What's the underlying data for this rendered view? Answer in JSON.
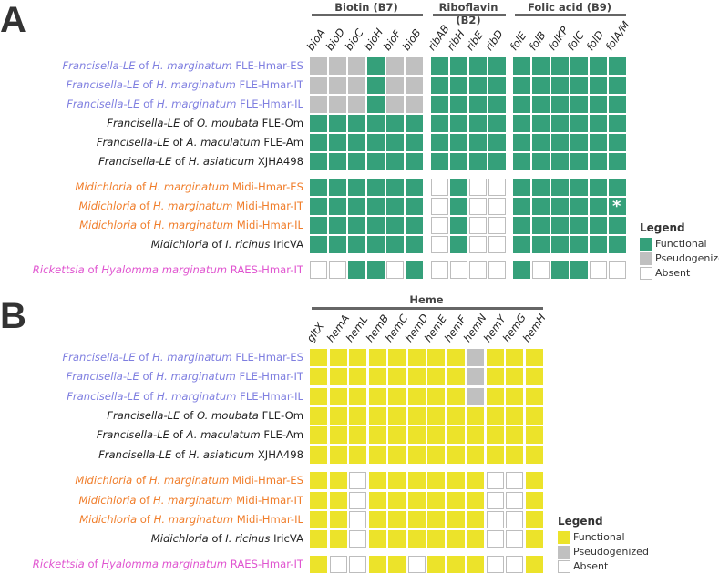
{
  "colors": {
    "functional_A": "#35a07a",
    "functional_B": "#ece32a",
    "pseudogenized": "#c0c0c0",
    "absent": "#ffffff",
    "francisella_hmar": "#7f7fe0",
    "midichloria_hmar": "#f07d2a",
    "rickettsia": "#e055d0",
    "other": "#222222"
  },
  "rows": [
    {
      "genus": "Francisella-LE",
      "of": "of",
      "host": "H. marginatum",
      "strain": "FLE-Hmar-ES",
      "color": "#7f7fe0"
    },
    {
      "genus": "Francisella-LE",
      "of": "of",
      "host": "H. marginatum",
      "strain": "FLE-Hmar-IT",
      "color": "#7f7fe0"
    },
    {
      "genus": "Francisella-LE",
      "of": "of",
      "host": "H. marginatum",
      "strain": "FLE-Hmar-IL",
      "color": "#7f7fe0"
    },
    {
      "genus": "Francisella-LE",
      "of": "of",
      "host": "O. moubata",
      "strain": "FLE-Om",
      "color": "#222222"
    },
    {
      "genus": "Francisella-LE",
      "of": "of",
      "host": "A. maculatum",
      "strain": "FLE-Am",
      "color": "#222222"
    },
    {
      "genus": "Francisella-LE",
      "of": "of",
      "host": "H. asiaticum",
      "strain": "XJHA498",
      "color": "#222222"
    },
    {
      "genus": "Midichloria",
      "of": "of",
      "host": "H. marginatum",
      "strain": "Midi-Hmar-ES",
      "color": "#f07d2a"
    },
    {
      "genus": "Midichloria",
      "of": "of",
      "host": "H. marginatum",
      "strain": "Midi-Hmar-IT",
      "color": "#f07d2a"
    },
    {
      "genus": "Midichloria",
      "of": "of",
      "host": "H. marginatum",
      "strain": "Midi-Hmar-IL",
      "color": "#f07d2a"
    },
    {
      "genus": "Midichloria",
      "of": "of",
      "host": "I. ricinus",
      "strain": "IricVA",
      "color": "#222222"
    },
    {
      "genus": "Rickettsia",
      "of": "of",
      "host": "Hyalomma marginatum",
      "strain": "RAES-Hmar-IT",
      "color": "#e055d0"
    }
  ],
  "chart_data": [
    {
      "type": "heatmap",
      "panel": "A",
      "state_codes": {
        "F": "Functional",
        "P": "Pseudogenized",
        "A": "Absent"
      },
      "groups": [
        {
          "title": "Biotin (B7)",
          "genes": [
            "bioA",
            "bioD",
            "bioC",
            "bioH",
            "bioF",
            "bioB"
          ],
          "states": [
            "PPPFPP",
            "PPPFPP",
            "PPPFPP",
            "FFFFFF",
            "FFFFFF",
            "FFFFFF",
            "FFFFFF",
            "FFFFFF",
            "FFFFFF",
            "FFFFFF",
            "AAFFAF"
          ]
        },
        {
          "title": "Riboflavin (B2)",
          "genes": [
            "ribAB",
            "ribH",
            "ribE",
            "ribD"
          ],
          "states": [
            "FFFF",
            "FFFF",
            "FFFF",
            "FFFF",
            "FFFF",
            "FFFF",
            "AFAA",
            "AFAA",
            "AFAA",
            "AFAA",
            "AAAA"
          ]
        },
        {
          "title": "Folic acid (B9)",
          "genes": [
            "folE",
            "folB",
            "folKP",
            "folC",
            "folD",
            "folA/M"
          ],
          "states": [
            "FFFFFF",
            "FFFFFF",
            "FFFFFF",
            "FFFFFF",
            "FFFFFF",
            "FFFFFF",
            "FFFFFF",
            "FFFFFF",
            "FFFFFF",
            "FFFFFF",
            "FAFFAA"
          ]
        }
      ],
      "annotations": [
        {
          "row": 7,
          "group": 2,
          "gene": "folA/M",
          "text": "*"
        }
      ],
      "legend": {
        "title": "Legend",
        "items": [
          "Functional",
          "Pseudogenized",
          "Absent"
        ],
        "placement": "right"
      }
    },
    {
      "type": "heatmap",
      "panel": "B",
      "state_codes": {
        "F": "Functional",
        "P": "Pseudogenized",
        "A": "Absent"
      },
      "groups": [
        {
          "title": "Heme",
          "genes": [
            "gltX",
            "hemA",
            "hemL",
            "hemB",
            "hemC",
            "hemD",
            "hemE",
            "hemF",
            "hemN",
            "hemY",
            "hemG",
            "hemH"
          ],
          "states": [
            "FFFFFFFFPFFF",
            "FFFFFFFFPFFF",
            "FFFFFFFFPFFF",
            "FFFFFFFFFFFF",
            "FFFFFFFFFFFF",
            "FFFFFFFFFFFF",
            "FFAFFFFFFAAF",
            "FFAFFFFFFAAF",
            "FFAFFFFFFAAF",
            "FFAFFFFFFAAF",
            "FAAFFAFFFAAF"
          ]
        }
      ],
      "annotations": [],
      "legend": {
        "title": "Legend",
        "items": [
          "Functional",
          "Pseudogenized",
          "Absent"
        ],
        "placement": "bottom-right"
      }
    }
  ]
}
